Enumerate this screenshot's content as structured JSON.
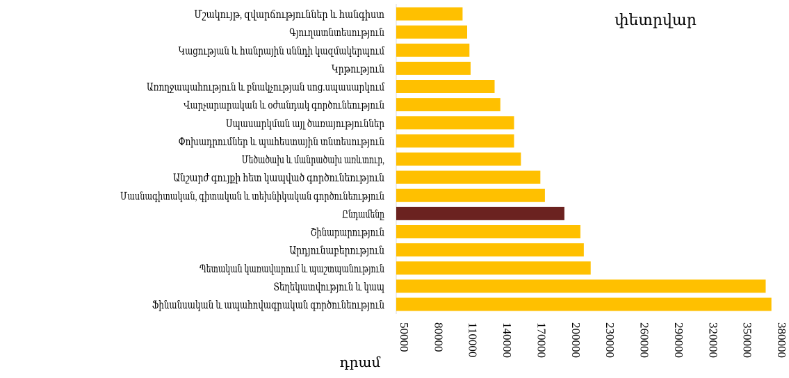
{
  "chart_data": {
    "type": "bar",
    "orientation": "horizontal",
    "title": "փետրվար",
    "xlabel": "դրամ",
    "ylabel": "",
    "xlim": [
      50000,
      380000
    ],
    "ticks": [
      50000,
      80000,
      110000,
      140000,
      170000,
      200000,
      230000,
      260000,
      290000,
      320000,
      350000,
      380000
    ],
    "grid": false,
    "legend": "none",
    "colors": {
      "default": "#FFC000",
      "highlight": "#6B2220"
    },
    "categories": [
      "Մշակույթ, զվարճություններ  և հանգիստ",
      "Գյուղատնտեսություն",
      "Կացության և հանրային սննդի կազմակերպում",
      "Կրթություն",
      "Առողջապահություն և բնակչության սոց.սպասարկում",
      "Վարչարարական և օժանդակ գործունեություն",
      "Սպասարկման այլ ծառայություններ",
      "Փոխադրումներ  և պահեստային տնտեսություն",
      "Մեծածախ և մանրածախ առևտուր,",
      "Անշարժ գույքի հետ կապված գործունեություն",
      "Մասնագիտական, գիտական և տեխնիկական գործունեություն",
      "Ընդամենը",
      "Շինարարություն",
      "Արդյունաբերություն",
      "Պետական կառավարում և պաշտպանություն",
      "Տեղեկատվություն և կապ",
      "Ֆինանսական  և ապահովագրական  գործունեություն"
    ],
    "values": [
      108000,
      112000,
      114000,
      115000,
      136000,
      141000,
      153000,
      153000,
      159000,
      176000,
      180000,
      197000,
      211000,
      214000,
      220000,
      373000,
      378000
    ],
    "highlight": [
      "Ընդամենը"
    ]
  }
}
